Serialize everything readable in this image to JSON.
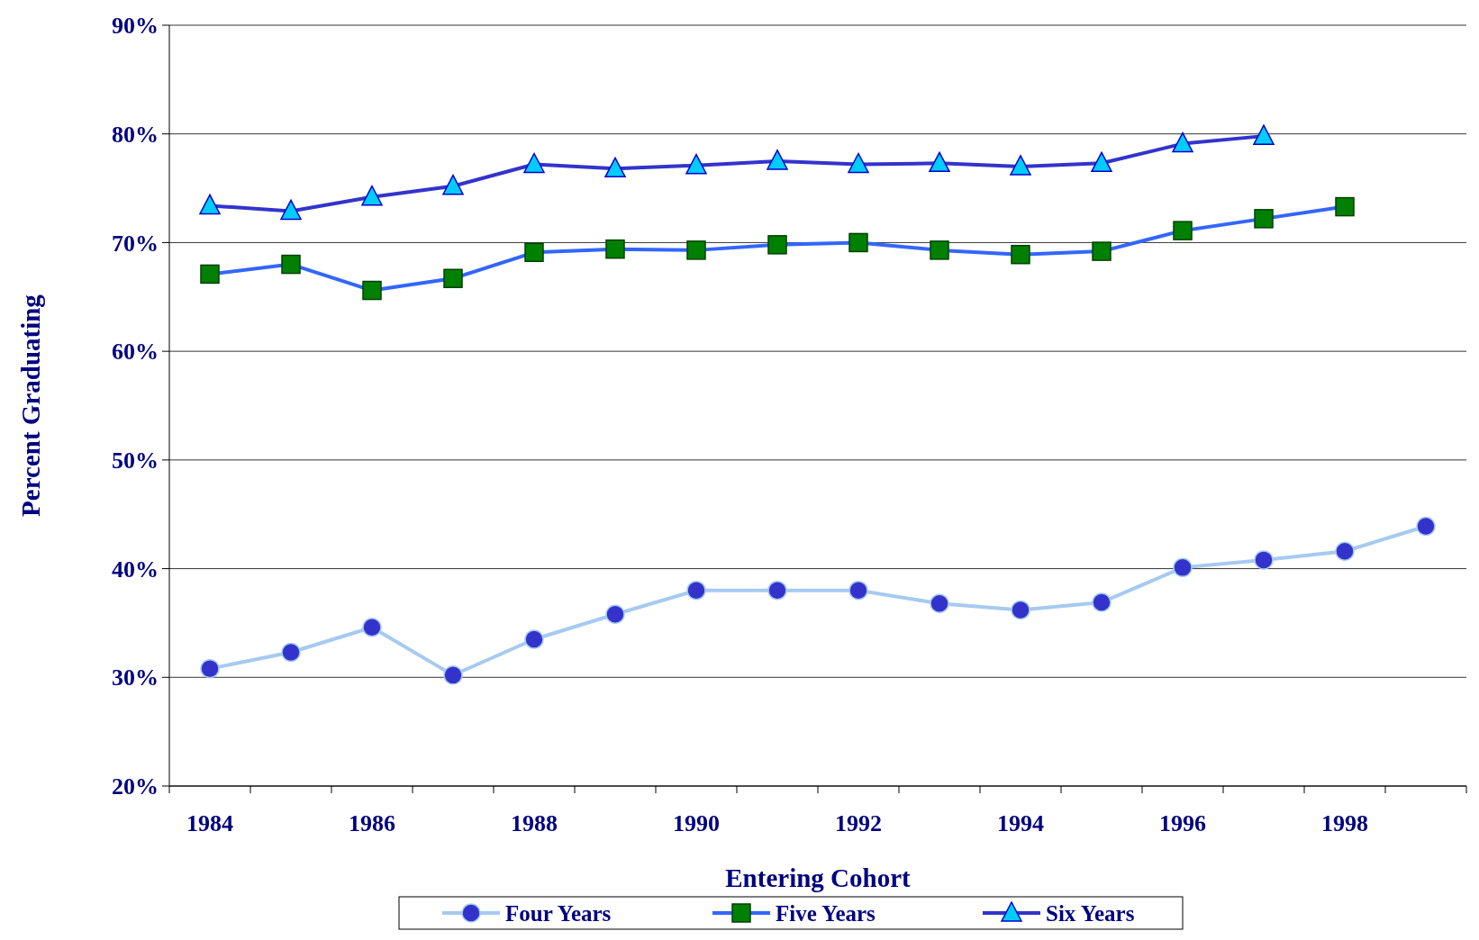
{
  "chart_data": {
    "type": "line",
    "xlabel": "Entering Cohort",
    "ylabel": "Percent Graduating",
    "categories": [
      "1984",
      null,
      "1986",
      null,
      "1988",
      null,
      "1990",
      null,
      "1992",
      null,
      "1994",
      null,
      "1996",
      null,
      "1998",
      null
    ],
    "series": [
      {
        "name": "Four Years",
        "color": "#a6caf0",
        "marker": "circle",
        "values": [
          30.8,
          32.3,
          34.6,
          30.2,
          33.5,
          35.8,
          38.0,
          38.0,
          38.0,
          36.8,
          36.2,
          36.9,
          40.1,
          40.8,
          41.6,
          43.9
        ]
      },
      {
        "name": "Five Years",
        "color": "#3366ff",
        "marker": "square",
        "values": [
          67.1,
          68.0,
          65.6,
          66.7,
          69.1,
          69.4,
          69.3,
          69.8,
          70.0,
          69.3,
          68.9,
          69.2,
          71.1,
          72.2,
          73.3,
          null
        ]
      },
      {
        "name": "Six Years",
        "color": "#3333cc",
        "marker": "triangle",
        "values": [
          73.4,
          72.9,
          74.2,
          75.2,
          77.2,
          76.8,
          77.1,
          77.5,
          77.2,
          77.3,
          77.0,
          77.3,
          79.1,
          79.8,
          null,
          null
        ]
      }
    ],
    "ylim": [
      20,
      90
    ],
    "yticks": [
      {
        "value": 20,
        "label": "20%"
      },
      {
        "value": 30,
        "label": "30%"
      },
      {
        "value": 40,
        "label": "40%"
      },
      {
        "value": 50,
        "label": "50%"
      },
      {
        "value": 60,
        "label": "60%"
      },
      {
        "value": 70,
        "label": "70%"
      },
      {
        "value": 80,
        "label": "80%"
      },
      {
        "value": 90,
        "label": "90%"
      }
    ],
    "grid": "y",
    "legend": "bottom",
    "line_style": "solid"
  }
}
